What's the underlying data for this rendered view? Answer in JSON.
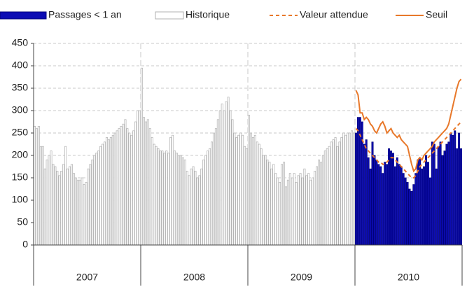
{
  "chart_data": {
    "type": "bar",
    "categories": [
      "2007",
      "2008",
      "2009",
      "2010"
    ],
    "ylim": [
      0,
      450
    ],
    "yticks": [
      0,
      50,
      100,
      150,
      200,
      250,
      300,
      350,
      400,
      450
    ],
    "grid": true,
    "legend": "top",
    "series": [
      {
        "name": "Passages < 1 an",
        "type": "bar",
        "color": "#0c0cb4",
        "edgecolor": "#00007a",
        "values": [
          null,
          null,
          null,
          [
            250,
            285,
            285,
            275,
            225,
            235,
            195,
            170,
            230,
            200,
            190,
            180,
            175,
            160,
            185,
            180,
            215,
            210,
            205,
            175,
            195,
            180,
            175,
            160,
            150,
            140,
            125,
            120,
            135,
            160,
            190,
            195,
            170,
            175,
            200,
            185,
            150,
            230,
            225,
            170,
            220,
            230,
            200,
            210,
            225,
            230,
            250,
            245,
            255,
            215,
            250,
            215
          ]
        ]
      },
      {
        "name": "Historique",
        "type": "bar",
        "color": "#ffffff",
        "edgecolor": "#b0b0b0",
        "values": [
          [
            265,
            260,
            265,
            220,
            220,
            170,
            190,
            200,
            210,
            180,
            175,
            165,
            155,
            165,
            180,
            220,
            170,
            175,
            180,
            160,
            150,
            145,
            145,
            150,
            135,
            140,
            170,
            180,
            190,
            200,
            205,
            210,
            220,
            225,
            230,
            240,
            235,
            240,
            245,
            250,
            255,
            260,
            265,
            270,
            280,
            260,
            250,
            245,
            255,
            275,
            300,
            300
          ],
          [
            395,
            285,
            275,
            280,
            260,
            240,
            225,
            220,
            215,
            210,
            210,
            205,
            210,
            205,
            240,
            245,
            210,
            205,
            200,
            200,
            195,
            190,
            165,
            155,
            170,
            175,
            165,
            150,
            155,
            170,
            190,
            200,
            210,
            215,
            230,
            250,
            260,
            280,
            300,
            315,
            300,
            320,
            330,
            300,
            280,
            250,
            240,
            245,
            250,
            245,
            220,
            215
          ],
          [
            290,
            250,
            240,
            245,
            230,
            225,
            215,
            200,
            200,
            190,
            185,
            170,
            180,
            160,
            150,
            140,
            180,
            185,
            130,
            145,
            160,
            150,
            160,
            140,
            155,
            160,
            150,
            170,
            155,
            160,
            145,
            150,
            165,
            175,
            190,
            185,
            200,
            210,
            215,
            220,
            230,
            235,
            240,
            220,
            230,
            240,
            250,
            245,
            250,
            250,
            255,
            250
          ],
          null
        ]
      },
      {
        "name": "Valeur attendue",
        "type": "line",
        "dashed": true,
        "color": "#e8782a",
        "values": [
          null,
          null,
          null,
          [
            260,
            255,
            245,
            235,
            225,
            215,
            210,
            205,
            200,
            195,
            190,
            185,
            185,
            180,
            180,
            185,
            190,
            195,
            195,
            190,
            185,
            180,
            175,
            170,
            165,
            160,
            155,
            150,
            150,
            155,
            165,
            175,
            180,
            185,
            190,
            195,
            200,
            205,
            210,
            215,
            220,
            225,
            230,
            235,
            240,
            245,
            250,
            255,
            260,
            265,
            270,
            275
          ]
        ]
      },
      {
        "name": "Seuil",
        "type": "line",
        "dashed": false,
        "color": "#e8782a",
        "values": [
          null,
          null,
          null,
          [
            345,
            335,
            295,
            295,
            280,
            285,
            280,
            270,
            265,
            255,
            250,
            260,
            270,
            275,
            265,
            250,
            255,
            260,
            250,
            245,
            240,
            245,
            235,
            230,
            225,
            220,
            200,
            180,
            165,
            170,
            190,
            195,
            190,
            200,
            205,
            210,
            215,
            220,
            230,
            235,
            240,
            245,
            250,
            255,
            260,
            270,
            290,
            310,
            330,
            350,
            365,
            370
          ]
        ]
      }
    ]
  }
}
